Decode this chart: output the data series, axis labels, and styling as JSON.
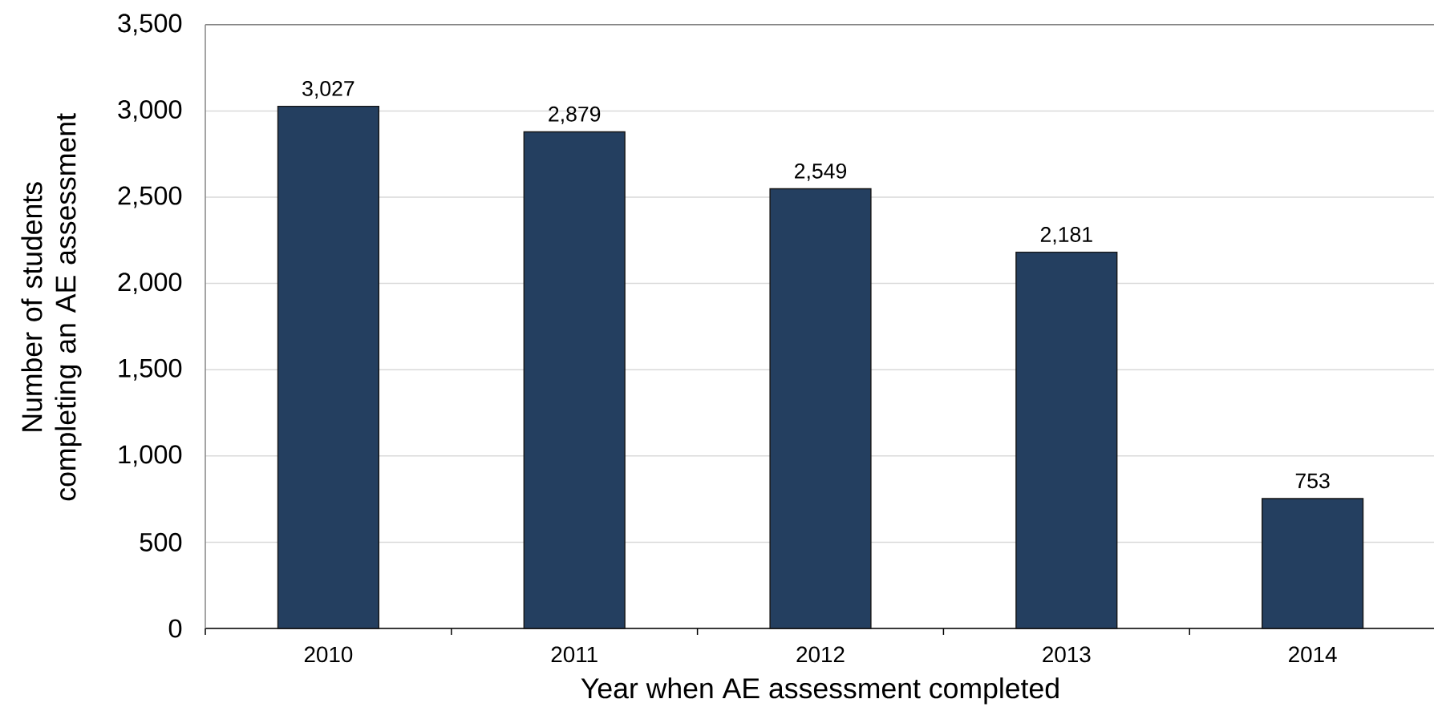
{
  "chart_data": {
    "type": "bar",
    "xlabel": "Year when AE assessment completed",
    "ylabel": "Number of students completing an AE assessment",
    "categories": [
      "2010",
      "2011",
      "2012",
      "2013",
      "2014"
    ],
    "values": [
      3027,
      2879,
      2549,
      2181,
      753
    ],
    "value_labels": [
      "3,027",
      "2,879",
      "2,549",
      "2,181",
      "753"
    ],
    "color": "#243f60",
    "ylim": [
      0,
      3500
    ],
    "yticks": [
      0,
      500,
      {
        "value": 1000,
        "label": "1,000"
      },
      {
        "value": 1500,
        "label": "1,500"
      },
      {
        "value": 2000,
        "label": "2,000"
      },
      {
        "value": 2500,
        "label": "2,500"
      },
      {
        "value": 3000,
        "label": "3,000"
      },
      {
        "value": 3500,
        "label": "3,500"
      }
    ],
    "grid": "y"
  }
}
